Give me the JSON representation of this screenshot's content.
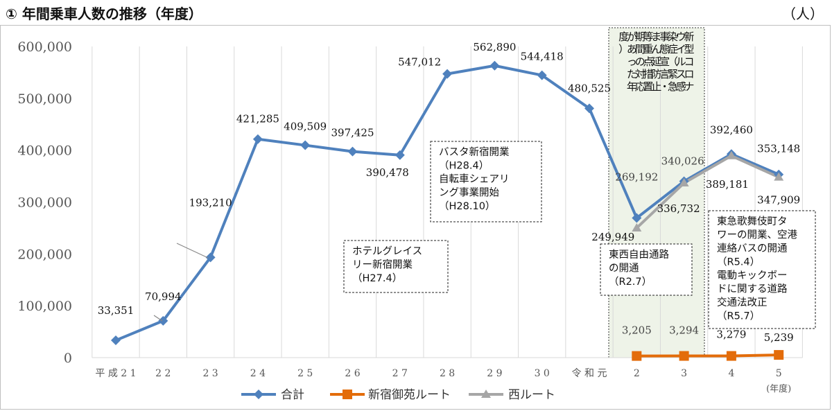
{
  "header": {
    "title": "① 年間乗車人数の推移（年度）",
    "unit": "（人）"
  },
  "chart_data": {
    "type": "line",
    "title": "① 年間乗車人数の推移（年度）",
    "ylabel": "（人）",
    "xlabel": "(年度)",
    "categories": [
      "平成21",
      "22",
      "23",
      "24",
      "25",
      "26",
      "27",
      "28",
      "29",
      "30",
      "令和元",
      "2",
      "3",
      "4",
      "5"
    ],
    "y_ticks": [
      "0",
      "100,000",
      "200,000",
      "300,000",
      "400,000",
      "500,000",
      "600,000"
    ],
    "ylim": [
      0,
      600000
    ],
    "grid": true,
    "legend_position": "bottom",
    "series": [
      {
        "name": "合計",
        "color": "#4f81bd",
        "values": [
          33351,
          70994,
          193210,
          421285,
          409509,
          397425,
          390478,
          547012,
          562890,
          544418,
          480525,
          269192,
          340026,
          392460,
          353148
        ],
        "labels": [
          "33,351",
          "70,994",
          "193,210",
          "421,285",
          "409,509",
          "397,425",
          "390,478",
          "547,012",
          "562,890",
          "544,418",
          "480,525",
          "269,192",
          "340,026",
          "392,460",
          "353,148"
        ]
      },
      {
        "name": "新宿御苑ルート",
        "color": "#e36c0a",
        "values": [
          null,
          null,
          null,
          null,
          null,
          null,
          null,
          null,
          null,
          null,
          null,
          3205,
          3294,
          3279,
          5239
        ],
        "labels": [
          "",
          "",
          "",
          "",
          "",
          "",
          "",
          "",
          "",
          "",
          "",
          "3,205",
          "3,294",
          "3,279",
          "5,239"
        ]
      },
      {
        "name": "西ルート",
        "color": "#a6a6a6",
        "values": [
          null,
          null,
          null,
          null,
          null,
          null,
          null,
          null,
          null,
          null,
          null,
          249949,
          336732,
          389181,
          347909
        ],
        "labels": [
          "",
          "",
          "",
          "",
          "",
          "",
          "",
          "",
          "",
          "",
          "",
          "249,949",
          "336,732",
          "389,181",
          "347,909"
        ]
      }
    ],
    "annotations": [
      {
        "lines": [
          "ホテルグレイス",
          "リー新宿開業",
          "（H27.4）"
        ]
      },
      {
        "lines": [
          "バスタ新宿開業",
          "（H28.4）",
          "自転車シェアリ",
          "ング事業開始",
          "（H28.10）"
        ]
      },
      {
        "lines": [
          "東西自由通路",
          "の開通",
          "（R2.7）"
        ]
      },
      {
        "lines": [
          "東急歌舞伎町タ",
          "ワーの開業、空港",
          "連絡バスの開通",
          "（R5.4）",
          "電動キックボー",
          "ドに関する道路",
          "交通法改正",
          "（R5.7）"
        ]
      },
      {
        "vertical": true,
        "columns": [
          "コロナ感急・",
          "ロス（緊止置応年",
          "ウイ宣言延防措対",
          "型症態点のた",
          "新染事まん重間のあっ",
          "等期がた",
          "度）"
        ]
      }
    ],
    "covid_text": [
      "新型コロナ",
      "ウイルス感",
      "染症（緊急",
      "事態宣言・",
      "まん延防止",
      "等重点措置",
      "期間の対応",
      "があった年",
      "度）"
    ]
  }
}
